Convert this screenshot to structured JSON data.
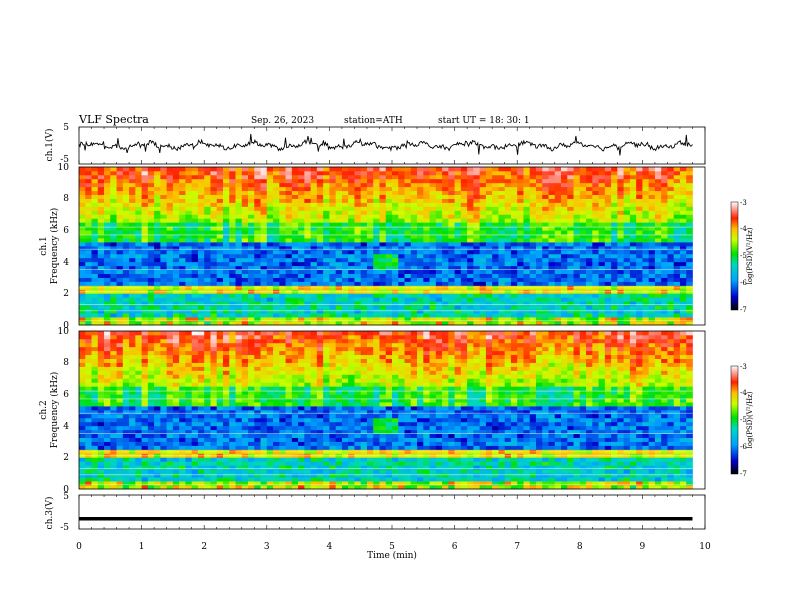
{
  "header": {
    "title": "VLF  Spectra",
    "date": "Sep. 26, 2023",
    "station": "station=ATH",
    "start": "start  UT  =   18: 30: 1"
  },
  "chart_data": [
    {
      "type": "line",
      "ylabel": "ch.1(V)",
      "ylim": [
        -5,
        5
      ],
      "yticks": [
        "5",
        "-5"
      ],
      "xlim": [
        0,
        10
      ],
      "x_extent": [
        0,
        9.8
      ],
      "baseline": 0
    },
    {
      "type": "heatmap",
      "ylabel_line1": "ch.1",
      "ylabel_line2": "Frequency  (kHz)",
      "ylim": [
        0,
        10
      ],
      "yticks": [
        "0",
        "2",
        "4",
        "6",
        "8",
        "10"
      ],
      "xlim": [
        0,
        10
      ],
      "x_extent": [
        0,
        9.8
      ],
      "colorbar": {
        "label": "log(PSD)(V²/Hz)",
        "range": [
          -7,
          -3
        ],
        "ticks": [
          "-3",
          "-4",
          "-5",
          "-6",
          "-7"
        ]
      }
    },
    {
      "type": "heatmap",
      "ylabel_line1": "ch.2",
      "ylabel_line2": "Frequency  (kHz)",
      "ylim": [
        0,
        10
      ],
      "yticks": [
        "0",
        "2",
        "4",
        "6",
        "8",
        "10"
      ],
      "xlim": [
        0,
        10
      ],
      "x_extent": [
        0,
        9.8
      ],
      "colorbar": {
        "label": "log(PSD)(V²/Hz)",
        "range": [
          -7,
          -3
        ],
        "ticks": [
          "-3",
          "-4",
          "-5",
          "-6",
          "-7"
        ]
      }
    },
    {
      "type": "line",
      "ylabel": "ch.3(V)",
      "ylim": [
        -5,
        5
      ],
      "yticks": [
        "5",
        "-5"
      ],
      "xlim": [
        0,
        10
      ],
      "x_extent": [
        0,
        9.8
      ],
      "constant_value": -2,
      "xlabel": "Time  (min)",
      "xticks": [
        "0",
        "1",
        "2",
        "3",
        "4",
        "5",
        "6",
        "7",
        "8",
        "9",
        "10"
      ]
    }
  ]
}
